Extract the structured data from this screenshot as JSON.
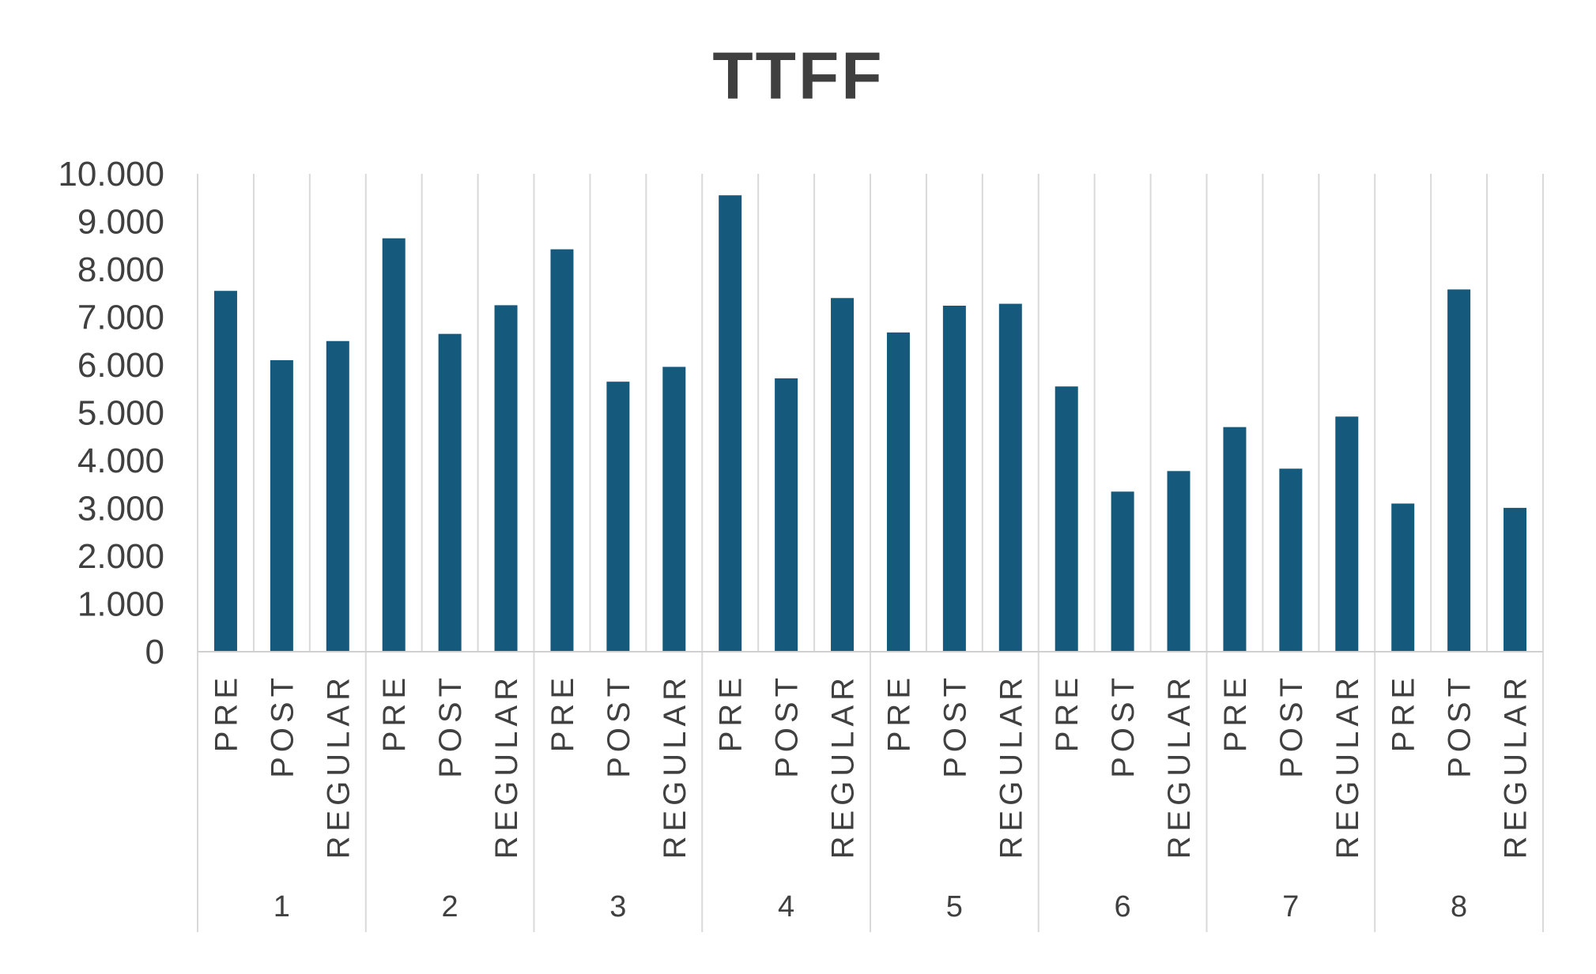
{
  "chart_data": {
    "type": "bar",
    "title": "TTFF",
    "xlabel": "",
    "ylabel": "",
    "ylim": [
      0,
      10000
    ],
    "y_ticks": [
      "0",
      "1.000",
      "2.000",
      "3.000",
      "4.000",
      "5.000",
      "6.000",
      "7.000",
      "8.000",
      "9.000",
      "10.000"
    ],
    "groups": [
      "1",
      "2",
      "3",
      "4",
      "5",
      "6",
      "7",
      "8"
    ],
    "subcategories": [
      "PRE",
      "POST",
      "REGULAR"
    ],
    "values": [
      [
        7550,
        6100,
        6500
      ],
      [
        8650,
        6650,
        7250
      ],
      [
        8420,
        5650,
        5960
      ],
      [
        9550,
        5720,
        7400
      ],
      [
        6680,
        7240,
        7280
      ],
      [
        5550,
        3350,
        3780
      ],
      [
        4700,
        3830,
        4920
      ],
      [
        3100,
        7580,
        3010
      ]
    ],
    "bar_color": "#155a7c",
    "grid": "vertical separators",
    "legend": "none"
  }
}
